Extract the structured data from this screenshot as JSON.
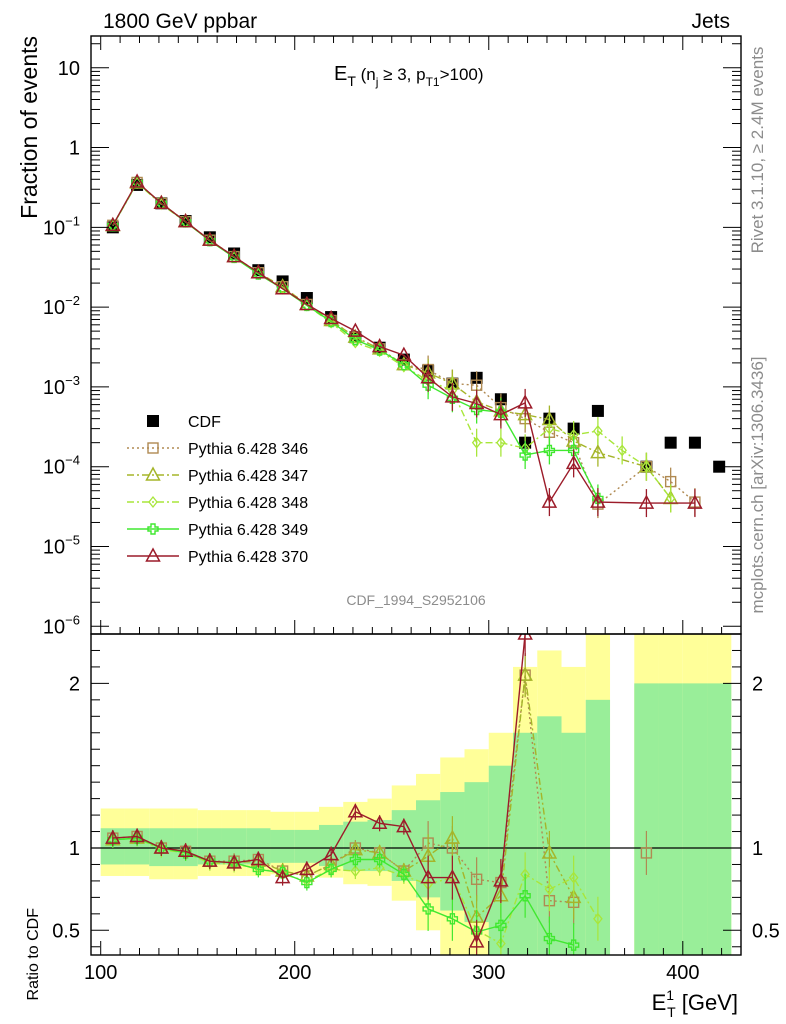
{
  "header": {
    "left": "1800 GeV ppbar",
    "right": "Jets",
    "title_main": "E",
    "title_sub_T": "T",
    "title_paren_open": " (n",
    "title_sub_j": "j",
    "title_geq": " ≥ 3, p",
    "title_sub_T1": "T1",
    "title_tail": ">100)",
    "side_top": "Rivet 3.1.10, ≥ 2.4M events",
    "side_bottom": "mcplots.cern.ch [arXiv:1306.3436]",
    "watermark": "CDF_1994_S2952106"
  },
  "axes": {
    "ylabel_top": "Fraction of events",
    "ylabel_bottom": "Ratio to CDF",
    "xlabel_main": "E",
    "xlabel_sup": "1",
    "xlabel_sub": "T",
    "xlabel_unit": " [GeV]",
    "x_ticks": [
      "100",
      "200",
      "300",
      "400"
    ],
    "y_top_ticks": [
      {
        "base": "10",
        "exp": ""
      },
      {
        "base": "1",
        "exp": ""
      },
      {
        "base": "10",
        "exp": "−1"
      },
      {
        "base": "10",
        "exp": "−2"
      },
      {
        "base": "10",
        "exp": "−3"
      },
      {
        "base": "10",
        "exp": "−4"
      },
      {
        "base": "10",
        "exp": "−5"
      },
      {
        "base": "10",
        "exp": "−6"
      }
    ],
    "y_bottom_ticks": [
      "2",
      "1",
      "0.5"
    ]
  },
  "legend": [
    {
      "label": "CDF",
      "color": "#000000",
      "marker": "square-filled",
      "dash": "none"
    },
    {
      "label": "Pythia 6.428 346",
      "color": "#b08a52",
      "marker": "square-open",
      "dash": "dotted"
    },
    {
      "label": "Pythia 6.428 347",
      "color": "#a5b52a",
      "marker": "triangle-open",
      "dash": "dashdot"
    },
    {
      "label": "Pythia 6.428 348",
      "color": "#a8e63a",
      "marker": "diamond-open",
      "dash": "dashdot"
    },
    {
      "label": "Pythia 6.428 349",
      "color": "#40e830",
      "marker": "cross",
      "dash": "solid"
    },
    {
      "label": "Pythia 6.428 370",
      "color": "#9c1c2a",
      "marker": "triangle-open",
      "dash": "solid"
    }
  ],
  "chart_data": {
    "type": "line",
    "title": "E_T (n_j ≥ 3, p_T1 >100)",
    "xlabel": "E_T^1 [GeV]",
    "ylabel": "Fraction of events",
    "ratio_ylabel": "Ratio to CDF",
    "x_scale": "linear",
    "y_scale": "log",
    "xlim": [
      95,
      430
    ],
    "ylim": [
      8e-07,
      25
    ],
    "ratio_ylim": [
      0.35,
      2.3
    ],
    "ratio_band_x_edges": [
      100,
      112.5,
      125,
      137.5,
      150,
      162.5,
      175,
      187.5,
      200,
      212.5,
      225,
      237.5,
      250,
      262.5,
      275,
      287.5,
      300,
      312.5,
      325,
      337.5,
      350,
      362.5,
      375,
      387.5,
      400,
      412.5,
      425
    ],
    "ratio_band_yellow": [
      [
        0.83,
        1.24
      ],
      [
        0.83,
        1.24
      ],
      [
        0.81,
        1.24
      ],
      [
        0.81,
        1.24
      ],
      [
        0.83,
        1.23
      ],
      [
        0.83,
        1.23
      ],
      [
        0.83,
        1.23
      ],
      [
        0.84,
        1.22
      ],
      [
        0.84,
        1.22
      ],
      [
        0.82,
        1.25
      ],
      [
        0.78,
        1.28
      ],
      [
        0.77,
        1.3
      ],
      [
        0.68,
        1.38
      ],
      [
        0.5,
        1.45
      ],
      [
        0.35,
        1.55
      ],
      [
        0.35,
        1.6
      ],
      [
        0.35,
        1.7
      ],
      [
        0.35,
        2.1
      ],
      [
        0.35,
        2.2
      ],
      [
        0.35,
        2.1
      ],
      [
        0.35,
        2.3
      ],
      null,
      [
        0.35,
        2.3
      ],
      [
        0.35,
        2.3
      ],
      [
        0.35,
        2.3
      ],
      [
        0.35,
        2.3
      ]
    ],
    "ratio_band_green": [
      [
        0.9,
        1.12
      ],
      [
        0.9,
        1.12
      ],
      [
        0.89,
        1.12
      ],
      [
        0.89,
        1.12
      ],
      [
        0.9,
        1.12
      ],
      [
        0.9,
        1.12
      ],
      [
        0.9,
        1.12
      ],
      [
        0.91,
        1.11
      ],
      [
        0.91,
        1.11
      ],
      [
        0.89,
        1.14
      ],
      [
        0.86,
        1.16
      ],
      [
        0.86,
        1.17
      ],
      [
        0.8,
        1.23
      ],
      [
        0.7,
        1.29
      ],
      [
        0.62,
        1.34
      ],
      [
        0.55,
        1.4
      ],
      [
        0.35,
        1.5
      ],
      [
        0.35,
        1.7
      ],
      [
        0.35,
        1.8
      ],
      [
        0.35,
        1.7
      ],
      [
        0.35,
        1.9
      ],
      null,
      [
        0.35,
        2.0
      ],
      [
        0.35,
        2.0
      ],
      [
        0.35,
        2.0
      ],
      [
        0.35,
        2.0
      ]
    ],
    "x": [
      106.25,
      118.75,
      131.25,
      143.75,
      156.25,
      168.75,
      181.25,
      193.75,
      206.25,
      218.75,
      231.25,
      243.75,
      256.25,
      268.75,
      281.25,
      293.75,
      306.25,
      318.75,
      331.25,
      343.75,
      356.25,
      368.75,
      381.25,
      393.75,
      406.25,
      418.75
    ],
    "series": [
      {
        "name": "CDF",
        "values": [
          0.1,
          0.34,
          0.2,
          0.12,
          0.075,
          0.047,
          0.029,
          0.021,
          0.013,
          0.0075,
          0.0042,
          0.0031,
          0.0022,
          0.0016,
          0.0011,
          0.0013,
          0.0007,
          0.0002,
          0.0004,
          0.0003,
          0.0005,
          null,
          0.0001,
          0.0002,
          0.0002,
          0.0001
        ]
      },
      {
        "name": "Pythia 6.428 346",
        "values": [
          0.106,
          0.365,
          0.2,
          0.118,
          0.069,
          0.043,
          0.027,
          0.018,
          0.0108,
          0.0068,
          0.0042,
          0.003,
          0.0019,
          0.00165,
          0.0011,
          0.00105,
          0.00055,
          0.0004,
          0.00027,
          0.0002,
          3.4e-05,
          null,
          0.0001,
          6.5e-05,
          3.6e-05,
          null
        ],
        "ratio": [
          1.06,
          1.07,
          1.0,
          0.98,
          0.92,
          0.92,
          0.93,
          0.86,
          0.83,
          0.9,
          1.0,
          0.97,
          0.86,
          1.03,
          1.0,
          0.81,
          0.79,
          2.05,
          0.68,
          0.67,
          null,
          null,
          0.97,
          null,
          null,
          null
        ]
      },
      {
        "name": "Pythia 6.428 347",
        "values": [
          0.105,
          0.36,
          0.2,
          0.118,
          0.069,
          0.043,
          0.027,
          0.018,
          0.0108,
          0.0068,
          0.0042,
          0.003,
          0.0019,
          0.0015,
          0.0011,
          0.00065,
          0.0005,
          0.00045,
          0.00039,
          0.00021,
          0.00015,
          null,
          0.0001,
          4e-05,
          null,
          null
        ],
        "ratio": [
          1.05,
          1.06,
          1.0,
          0.98,
          0.92,
          0.91,
          0.92,
          0.86,
          0.83,
          0.9,
          0.99,
          0.97,
          0.86,
          0.95,
          1.06,
          0.58,
          0.71,
          2.05,
          0.97,
          0.7,
          null,
          null,
          null,
          null,
          null,
          null
        ]
      },
      {
        "name": "Pythia 6.428 348",
        "values": [
          0.105,
          0.36,
          0.195,
          0.117,
          0.068,
          0.042,
          0.026,
          0.017,
          0.0105,
          0.0064,
          0.0036,
          0.0028,
          0.0018,
          0.0012,
          0.0009,
          0.0002,
          0.0002,
          0.00017,
          0.0003,
          0.00025,
          0.00028,
          0.00016,
          0.0001,
          4e-05,
          null,
          null
        ],
        "ratio": [
          1.05,
          1.06,
          0.99,
          0.97,
          0.91,
          0.9,
          0.88,
          0.84,
          0.8,
          0.87,
          0.86,
          0.88,
          0.83,
          0.78,
          0.82,
          0.5,
          0.42,
          0.84,
          0.75,
          0.82,
          0.57,
          null,
          null,
          null,
          null,
          null
        ]
      },
      {
        "name": "Pythia 6.428 349",
        "values": [
          0.105,
          0.365,
          0.2,
          0.117,
          0.068,
          0.042,
          0.026,
          0.017,
          0.0105,
          0.0066,
          0.0039,
          0.0029,
          0.0019,
          0.00105,
          0.00072,
          0.00052,
          0.00048,
          0.00014,
          0.00016,
          0.00016,
          4e-05,
          null,
          null,
          null,
          null,
          null
        ],
        "ratio": [
          1.05,
          1.06,
          1.0,
          0.97,
          0.92,
          0.91,
          0.87,
          0.85,
          0.79,
          0.87,
          0.93,
          0.93,
          0.84,
          0.63,
          0.57,
          0.49,
          0.53,
          0.71,
          0.45,
          0.41,
          null,
          null,
          null,
          null,
          null,
          null
        ]
      },
      {
        "name": "Pythia 6.428 370",
        "values": [
          0.106,
          0.37,
          0.2,
          0.118,
          0.069,
          0.043,
          0.027,
          0.017,
          0.0108,
          0.0072,
          0.005,
          0.0032,
          0.0025,
          0.0013,
          0.00075,
          0.00062,
          0.00045,
          0.00063,
          3.6e-05,
          0.00011,
          3.6e-05,
          null,
          3.5e-05,
          null,
          3.5e-05,
          null
        ],
        "ratio": [
          1.06,
          1.07,
          1.0,
          0.98,
          0.92,
          0.91,
          0.93,
          0.82,
          0.87,
          0.96,
          1.22,
          1.15,
          1.13,
          0.82,
          0.82,
          0.43,
          0.8,
          2.3,
          null,
          null,
          null,
          null,
          null,
          null,
          null,
          null
        ]
      }
    ]
  }
}
